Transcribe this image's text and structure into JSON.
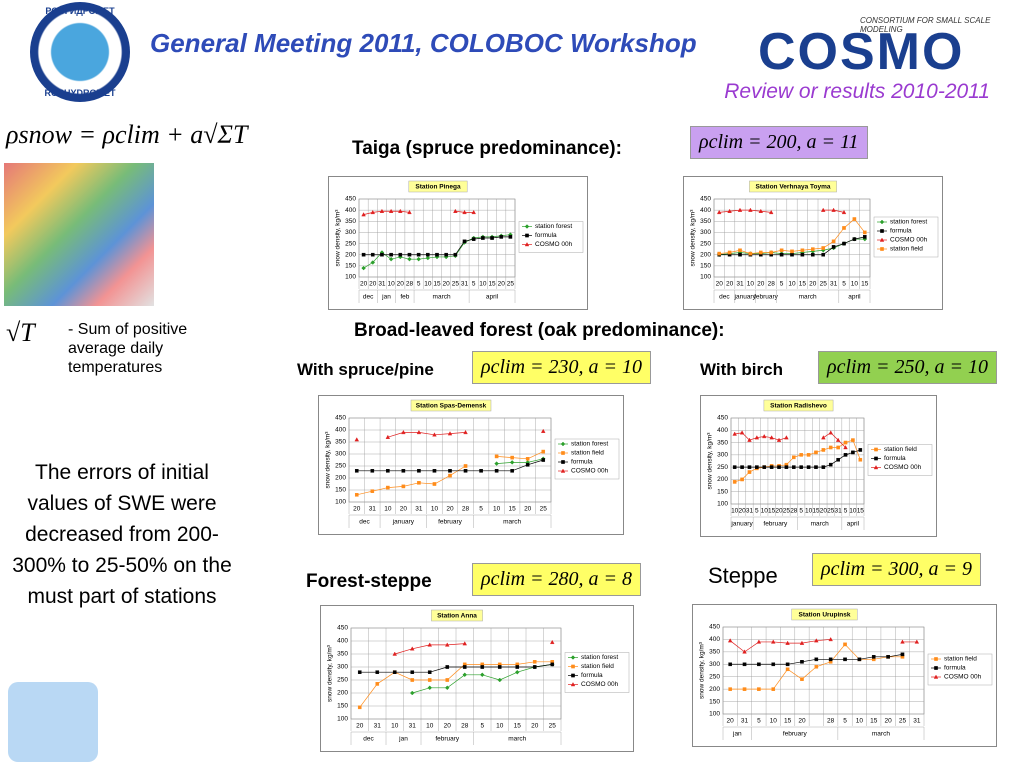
{
  "header": {
    "title": "General Meeting 2011, COLOBOC Workshop",
    "subtitle": "Review or results 2010-2011",
    "logo_top": "РОСГИДРОМЕТ",
    "logo_bottom": "ROSHYDROMET",
    "cosmo": "COSMO",
    "consortium": "CONSORTIUM FOR SMALL SCALE MODELING"
  },
  "formula": {
    "main": "ρsnow = ρclim + a√ΣT",
    "sqrt": "√T",
    "sqrt_desc": "- Sum of positive average daily temperatures"
  },
  "conclusion": "The errors of initial values of SWE were decreased from 200-300% to 25-50% on the must part of stations",
  "sections": {
    "taiga": "Taiga (spruce predominance):",
    "broad": "Broad-leaved forest (oak predominance):",
    "spruce": "With spruce/pine",
    "birch": "With birch",
    "forest_steppe": "Forest-steppe",
    "steppe": "Steppe"
  },
  "params": {
    "taiga": "ρclim = 200,  a = 11",
    "spruce": "ρclim = 230,  a = 10",
    "birch": "ρclim = 250,  a = 10",
    "forest_steppe": "ρclim = 280,  a = 8",
    "steppe": "ρclim = 300,  a = 9"
  },
  "chart_data": [
    {
      "type": "line",
      "title": "Station Pinega",
      "ylabel": "snow density, kg/m³",
      "ylim": [
        100,
        450
      ],
      "yticks": [
        100,
        150,
        200,
        250,
        300,
        350,
        400,
        450
      ],
      "grid": true,
      "categories": [
        "20",
        "20",
        "31",
        "10",
        "20",
        "28",
        "5",
        "10",
        "15",
        "20",
        "25",
        "31",
        "5",
        "10",
        "15",
        "20",
        "25"
      ],
      "months": [
        "dec",
        "dec",
        "jan",
        "jan",
        "feb",
        "feb",
        "march",
        "march",
        "march",
        "march",
        "march",
        "march",
        "april",
        "april",
        "april",
        "april",
        "april"
      ],
      "series": [
        {
          "name": "station forest",
          "color": "#2ca02c",
          "marker": "diamond",
          "values": [
            140,
            165,
            210,
            180,
            190,
            180,
            180,
            185,
            190,
            190,
            195,
            255,
            275,
            280,
            280,
            285,
            290
          ]
        },
        {
          "name": "formula",
          "color": "#000000",
          "marker": "square",
          "values": [
            200,
            200,
            200,
            200,
            200,
            200,
            200,
            200,
            200,
            200,
            200,
            260,
            270,
            275,
            275,
            280,
            280
          ]
        },
        {
          "name": "COSMO 00h",
          "color": "#e02020",
          "marker": "triangle",
          "values": [
            380,
            390,
            395,
            395,
            395,
            390,
            null,
            null,
            null,
            null,
            395,
            390,
            390,
            null,
            null,
            null,
            null
          ]
        }
      ]
    },
    {
      "type": "line",
      "title": "Station Verhnaya Toyma",
      "ylabel": "snow density, kg/m³",
      "ylim": [
        100,
        450
      ],
      "yticks": [
        100,
        150,
        200,
        250,
        300,
        350,
        400,
        450
      ],
      "grid": true,
      "categories": [
        "20",
        "20",
        "31",
        "10",
        "20",
        "28",
        "5",
        "10",
        "15",
        "20",
        "25",
        "31",
        "5",
        "10",
        "15"
      ],
      "months": [
        "dec",
        "dec",
        "january",
        "january",
        "february",
        "february",
        "march",
        "march",
        "march",
        "march",
        "march",
        "march",
        "april",
        "april",
        "april"
      ],
      "series": [
        {
          "name": "station forest",
          "color": "#2ca02c",
          "marker": "diamond",
          "values": [
            200,
            205,
            210,
            205,
            205,
            210,
            205,
            205,
            210,
            215,
            220,
            230,
            250,
            270,
            270
          ]
        },
        {
          "name": "formula",
          "color": "#000000",
          "marker": "square",
          "values": [
            200,
            200,
            200,
            200,
            200,
            200,
            200,
            200,
            200,
            200,
            200,
            235,
            250,
            270,
            280
          ]
        },
        {
          "name": "COSMO 00h",
          "color": "#e02020",
          "marker": "triangle",
          "values": [
            390,
            395,
            400,
            400,
            395,
            390,
            null,
            null,
            null,
            null,
            400,
            400,
            390,
            null,
            null
          ]
        },
        {
          "name": "station field",
          "color": "#ff8c1a",
          "marker": "square",
          "values": [
            205,
            210,
            220,
            205,
            210,
            210,
            220,
            215,
            220,
            225,
            230,
            260,
            320,
            360,
            300
          ]
        }
      ]
    },
    {
      "type": "line",
      "title": "Station Spas-Demensk",
      "ylabel": "snow density, kg/m³",
      "ylim": [
        100,
        450
      ],
      "yticks": [
        100,
        150,
        200,
        250,
        300,
        350,
        400,
        450
      ],
      "grid": true,
      "categories": [
        "20",
        "31",
        "10",
        "20",
        "31",
        "10",
        "20",
        "28",
        "5",
        "10",
        "15",
        "20",
        "25"
      ],
      "months": [
        "dec",
        "dec",
        "january",
        "january",
        "january",
        "february",
        "february",
        "february",
        "march",
        "march",
        "march",
        "march",
        "march"
      ],
      "series": [
        {
          "name": "station forest",
          "color": "#2ca02c",
          "marker": "diamond",
          "values": [
            null,
            null,
            null,
            null,
            null,
            null,
            null,
            null,
            null,
            260,
            265,
            265,
            280
          ]
        },
        {
          "name": "station field",
          "color": "#ff8c1a",
          "marker": "square",
          "values": [
            130,
            145,
            160,
            165,
            180,
            175,
            210,
            250,
            null,
            290,
            285,
            280,
            310
          ]
        },
        {
          "name": "formula",
          "color": "#000000",
          "marker": "square",
          "values": [
            230,
            230,
            230,
            230,
            230,
            230,
            230,
            230,
            230,
            230,
            230,
            255,
            275
          ]
        },
        {
          "name": "COSMO 00h",
          "color": "#e02020",
          "marker": "triangle",
          "values": [
            360,
            null,
            370,
            390,
            390,
            380,
            385,
            390,
            null,
            null,
            null,
            null,
            395
          ]
        }
      ]
    },
    {
      "type": "line",
      "title": "Station Radishevo",
      "ylabel": "snow density, kg/m³",
      "ylim": [
        100,
        450
      ],
      "yticks": [
        100,
        150,
        200,
        250,
        300,
        350,
        400,
        450
      ],
      "grid": true,
      "categories": [
        "10",
        "20",
        "31",
        "5",
        "10",
        "15",
        "20",
        "25",
        "28",
        "5",
        "10",
        "15",
        "20",
        "25",
        "31",
        "5",
        "10",
        "15"
      ],
      "months": [
        "january",
        "january",
        "january",
        "february",
        "february",
        "february",
        "february",
        "february",
        "february",
        "march",
        "march",
        "march",
        "march",
        "march",
        "march",
        "april",
        "april",
        "april"
      ],
      "series": [
        {
          "name": "station field",
          "color": "#ff8c1a",
          "marker": "square",
          "values": [
            190,
            200,
            230,
            245,
            250,
            255,
            255,
            260,
            290,
            300,
            300,
            310,
            320,
            330,
            330,
            350,
            360,
            280
          ]
        },
        {
          "name": "formula",
          "color": "#000000",
          "marker": "square",
          "values": [
            250,
            250,
            250,
            250,
            250,
            250,
            250,
            250,
            250,
            250,
            250,
            250,
            250,
            260,
            280,
            300,
            310,
            320
          ]
        },
        {
          "name": "COSMO 00h",
          "color": "#e02020",
          "marker": "triangle",
          "values": [
            385,
            390,
            360,
            370,
            375,
            370,
            360,
            370,
            null,
            null,
            null,
            null,
            370,
            390,
            360,
            330,
            null,
            null
          ]
        }
      ]
    },
    {
      "type": "line",
      "title": "Station Anna",
      "ylabel": "snow density, kg/m³",
      "ylim": [
        100,
        450
      ],
      "yticks": [
        100,
        150,
        200,
        250,
        300,
        350,
        400,
        450
      ],
      "grid": true,
      "categories": [
        "20",
        "31",
        "10",
        "31",
        "10",
        "20",
        "28",
        "5",
        "10",
        "15",
        "20",
        "25"
      ],
      "months": [
        "dec",
        "dec",
        "jan",
        "jan",
        "february",
        "february",
        "february",
        "march",
        "march",
        "march",
        "march",
        "march"
      ],
      "series": [
        {
          "name": "station forest",
          "color": "#2ca02c",
          "marker": "diamond",
          "values": [
            null,
            null,
            null,
            200,
            220,
            220,
            270,
            270,
            250,
            280,
            300,
            310
          ]
        },
        {
          "name": "station field",
          "color": "#ff8c1a",
          "marker": "square",
          "values": [
            145,
            235,
            280,
            250,
            250,
            250,
            310,
            310,
            310,
            310,
            320,
            320
          ]
        },
        {
          "name": "formula",
          "color": "#000000",
          "marker": "square",
          "values": [
            280,
            280,
            280,
            280,
            280,
            300,
            300,
            300,
            300,
            300,
            300,
            310
          ]
        },
        {
          "name": "COSMO 00h",
          "color": "#e02020",
          "marker": "triangle",
          "values": [
            null,
            null,
            350,
            370,
            385,
            385,
            390,
            null,
            null,
            null,
            null,
            395
          ]
        }
      ]
    },
    {
      "type": "line",
      "title": "Station Urupinsk",
      "ylabel": "snow density, kg/m³",
      "ylim": [
        100,
        450
      ],
      "yticks": [
        100,
        150,
        200,
        250,
        300,
        350,
        400,
        450
      ],
      "grid": true,
      "categories": [
        "20",
        "31",
        "5",
        "10",
        "15",
        "20",
        null,
        "28",
        "5",
        "10",
        "15",
        "20",
        "25",
        "31"
      ],
      "months": [
        "jan",
        "jan",
        "february",
        "february",
        "february",
        "february",
        "february",
        "february",
        "march",
        "march",
        "march",
        "march",
        "march",
        "march"
      ],
      "series": [
        {
          "name": "station field",
          "color": "#ff8c1a",
          "marker": "square",
          "values": [
            200,
            200,
            200,
            200,
            280,
            240,
            290,
            310,
            380,
            320,
            320,
            330,
            330,
            null
          ]
        },
        {
          "name": "formula",
          "color": "#000000",
          "marker": "square",
          "values": [
            300,
            300,
            300,
            300,
            300,
            310,
            320,
            320,
            320,
            320,
            330,
            330,
            340,
            null
          ]
        },
        {
          "name": "COSMO 00h",
          "color": "#e02020",
          "marker": "triangle",
          "values": [
            395,
            350,
            390,
            390,
            385,
            385,
            395,
            400,
            null,
            null,
            null,
            null,
            390,
            390
          ]
        }
      ]
    }
  ]
}
